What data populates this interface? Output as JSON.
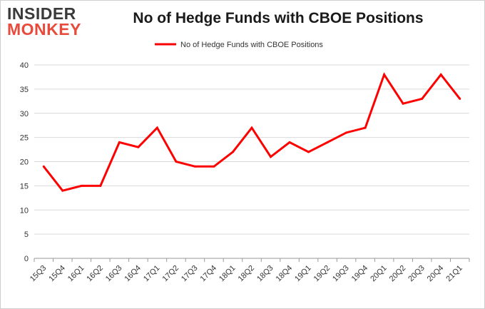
{
  "logo": {
    "top": "INSIDER",
    "bottom": "MONKEY"
  },
  "chart_data": {
    "type": "line",
    "title": "No of Hedge Funds with CBOE Positions",
    "xlabel": "",
    "ylabel": "",
    "categories": [
      "15Q3",
      "15Q4",
      "16Q1",
      "16Q2",
      "16Q3",
      "16Q4",
      "17Q1",
      "17Q2",
      "17Q3",
      "17Q4",
      "18Q1",
      "18Q2",
      "18Q3",
      "18Q4",
      "19Q1",
      "19Q2",
      "19Q3",
      "19Q4",
      "20Q1",
      "20Q2",
      "20Q3",
      "20Q4",
      "21Q1"
    ],
    "series": [
      {
        "name": "No of Hedge Funds with CBOE Positions",
        "color": "#ff0000",
        "values": [
          19,
          14,
          15,
          15,
          24,
          23,
          27,
          20,
          19,
          19,
          22,
          27,
          21,
          24,
          22,
          24,
          26,
          27,
          38,
          32,
          33,
          38,
          33
        ]
      }
    ],
    "ylim": [
      0,
      40
    ],
    "yticks": [
      0,
      5,
      10,
      15,
      20,
      25,
      30,
      35,
      40
    ],
    "grid": true,
    "legend": "top-center"
  }
}
